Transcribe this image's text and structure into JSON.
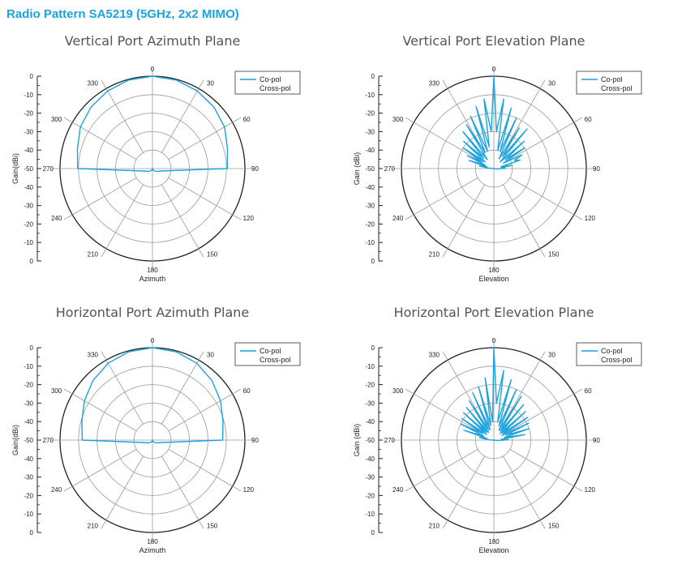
{
  "page": {
    "title": "Radio Pattern SA5219 (5GHz, 2x2 MIMO)"
  },
  "colors": {
    "accent": "#1aa3de",
    "grid": "#9a9a9a",
    "axis": "#222222"
  },
  "chart_data": [
    {
      "type": "polar",
      "title": "Vertical Port Azimuth Plane",
      "xlabel": "Azimuth",
      "ylabel": "Gain(dBi)",
      "angle_ticks": [
        "0",
        "30",
        "60",
        "90",
        "120",
        "150",
        "180",
        "210",
        "240",
        "270",
        "300",
        "330"
      ],
      "radial_ticks": [
        "0",
        "-10",
        "-20",
        "-30",
        "-40",
        "-50",
        "-40",
        "-30",
        "-20",
        "-10",
        "0"
      ],
      "radial_range": [
        -50,
        0
      ],
      "legend": [
        "Co-pol",
        "Cross-pol"
      ],
      "legend_position": "top-right",
      "series": [
        {
          "name": "Co-pol",
          "angles": [
            0,
            15,
            30,
            45,
            60,
            75,
            90,
            105,
            120,
            135,
            150,
            165,
            180,
            195,
            210,
            225,
            240,
            255,
            270,
            285,
            300,
            315,
            330,
            345
          ],
          "values": [
            0,
            -0.4,
            -1.5,
            -3,
            -5,
            -8,
            -9.5,
            -45,
            -47,
            -48,
            -49,
            -49.5,
            -50,
            -49.5,
            -49,
            -48,
            -47,
            -45,
            -9.5,
            -8,
            -5,
            -3,
            -1.5,
            -0.4
          ]
        }
      ]
    },
    {
      "type": "polar",
      "title": "Vertical Port Elevation Plane",
      "xlabel": "Elevation",
      "ylabel": "Gain (dBi)",
      "angle_ticks": [
        "0",
        "30",
        "60",
        "90",
        "120",
        "150",
        "180",
        "210",
        "240",
        "270",
        "300",
        "330"
      ],
      "radial_ticks": [
        "0",
        "-10",
        "-20",
        "-30",
        "-40",
        "-50",
        "-40",
        "-30",
        "-20",
        "-10",
        "0"
      ],
      "radial_range": [
        -50,
        0
      ],
      "legend": [
        "Co-pol",
        "Cross-pol"
      ],
      "legend_position": "top-right",
      "series": [
        {
          "name": "Co-pol",
          "angles": [
            0,
            4,
            8,
            12,
            16,
            20,
            24,
            28,
            32,
            36,
            40,
            44,
            48,
            52,
            56,
            60,
            64,
            68,
            72,
            76,
            80,
            84,
            88,
            92,
            96,
            100,
            104,
            108,
            112,
            116,
            120,
            124,
            128,
            132,
            136,
            140,
            144,
            148,
            152,
            156,
            160,
            164,
            168,
            172,
            176,
            180,
            184,
            188,
            192,
            196,
            200,
            204,
            208,
            212,
            216,
            220,
            224,
            228,
            232,
            236,
            240,
            244,
            248,
            252,
            256,
            260,
            264,
            268,
            272,
            276,
            280,
            284,
            288,
            292,
            296,
            300,
            304,
            308,
            312,
            316,
            320,
            324,
            328,
            332,
            336,
            340,
            344,
            348,
            352,
            356
          ],
          "values": [
            0,
            -30,
            -12,
            -40,
            -16,
            -40,
            -20,
            -44,
            -24,
            -42,
            -22,
            -45,
            -28,
            -42,
            -30,
            -44,
            -33,
            -38,
            -35,
            -46,
            -40,
            -46,
            -44,
            -47,
            -48,
            -49,
            -49.5,
            -50,
            -50,
            -50,
            -50,
            -50,
            -50,
            -50,
            -50,
            -50,
            -50,
            -50,
            -50,
            -50,
            -50,
            -50,
            -50,
            -50,
            -50,
            -50,
            -50,
            -50,
            -50,
            -50,
            -50,
            -50,
            -50,
            -50,
            -50,
            -50,
            -50,
            -50,
            -50,
            -50,
            -50,
            -50,
            -50,
            -50,
            -50,
            -50,
            -50,
            -50,
            -49,
            -46,
            -42,
            -46,
            -36,
            -45,
            -34,
            -43,
            -30,
            -44,
            -28,
            -42,
            -24,
            -44,
            -22,
            -40,
            -19,
            -40,
            -15,
            -38,
            -12,
            -30
          ]
        }
      ]
    },
    {
      "type": "polar",
      "title": "Horizontal Port Azimuth Plane",
      "xlabel": "Azimuth",
      "ylabel": "Gain(dBi)",
      "angle_ticks": [
        "0",
        "30",
        "60",
        "90",
        "120",
        "150",
        "180",
        "210",
        "240",
        "270",
        "300",
        "330"
      ],
      "radial_ticks": [
        "0",
        "-10",
        "-20",
        "-30",
        "-40",
        "-50",
        "-40",
        "-30",
        "-20",
        "-10",
        "0"
      ],
      "radial_range": [
        -50,
        0
      ],
      "legend": [
        "Co-pol",
        "Cross-pol"
      ],
      "legend_position": "top-right",
      "series": [
        {
          "name": "Co-pol",
          "angles": [
            0,
            15,
            30,
            45,
            60,
            75,
            90,
            105,
            120,
            135,
            150,
            165,
            180,
            195,
            210,
            225,
            240,
            255,
            270,
            285,
            300,
            315,
            330,
            345
          ],
          "values": [
            0,
            -0.5,
            -2,
            -4.5,
            -7.5,
            -10.5,
            -12,
            -45,
            -47,
            -48,
            -49,
            -49.5,
            -50,
            -49.5,
            -49,
            -48,
            -47,
            -45,
            -12,
            -10.5,
            -7.5,
            -4.5,
            -2,
            -0.5
          ]
        }
      ]
    },
    {
      "type": "polar",
      "title": "Horizontal Port Elevation Plane",
      "xlabel": "Elevation",
      "ylabel": "Gain (dBi)",
      "angle_ticks": [
        "0",
        "30",
        "60",
        "90",
        "120",
        "150",
        "180",
        "210",
        "240",
        "270",
        "300",
        "330"
      ],
      "radial_ticks": [
        "0",
        "-10",
        "-20",
        "-30",
        "-40",
        "-50",
        "-40",
        "-30",
        "-20",
        "-10",
        "0"
      ],
      "radial_range": [
        -50,
        0
      ],
      "legend": [
        "Co-pol",
        "Cross-pol"
      ],
      "legend_position": "top-right",
      "series": [
        {
          "name": "Co-pol",
          "angles": [
            0,
            4,
            8,
            12,
            16,
            20,
            24,
            28,
            32,
            36,
            40,
            44,
            48,
            52,
            56,
            60,
            64,
            68,
            72,
            76,
            80,
            84,
            88,
            92,
            96,
            100,
            104,
            108,
            112,
            116,
            120,
            124,
            128,
            132,
            136,
            140,
            144,
            148,
            152,
            156,
            160,
            164,
            168,
            172,
            176,
            180,
            184,
            188,
            192,
            196,
            200,
            204,
            208,
            212,
            216,
            220,
            224,
            228,
            232,
            236,
            240,
            244,
            248,
            252,
            256,
            260,
            264,
            268,
            272,
            276,
            280,
            284,
            288,
            292,
            296,
            300,
            304,
            308,
            312,
            316,
            320,
            324,
            328,
            332,
            336,
            340,
            344,
            348,
            352,
            356
          ],
          "values": [
            0,
            -30,
            -12,
            -40,
            -16,
            -42,
            -20,
            -44,
            -22,
            -44,
            -25,
            -45,
            -27,
            -44,
            -28,
            -45,
            -29,
            -43,
            -30,
            -44,
            -33,
            -46,
            -42,
            -46,
            -48,
            -50,
            -50,
            -50,
            -50,
            -50,
            -50,
            -50,
            -50,
            -50,
            -50,
            -50,
            -50,
            -50,
            -50,
            -50,
            -50,
            -50,
            -50,
            -50,
            -50,
            -50,
            -50,
            -50,
            -50,
            -50,
            -50,
            -50,
            -50,
            -50,
            -50,
            -50,
            -50,
            -50,
            -50,
            -50,
            -50,
            -50,
            -50,
            -50,
            -50,
            -50,
            -50,
            -50,
            -48,
            -46,
            -42,
            -46,
            -33,
            -44,
            -30,
            -43,
            -29,
            -45,
            -28,
            -44,
            -27,
            -45,
            -25,
            -44,
            -22,
            -44,
            -20,
            -42,
            -16,
            -40
          ]
        }
      ]
    }
  ]
}
